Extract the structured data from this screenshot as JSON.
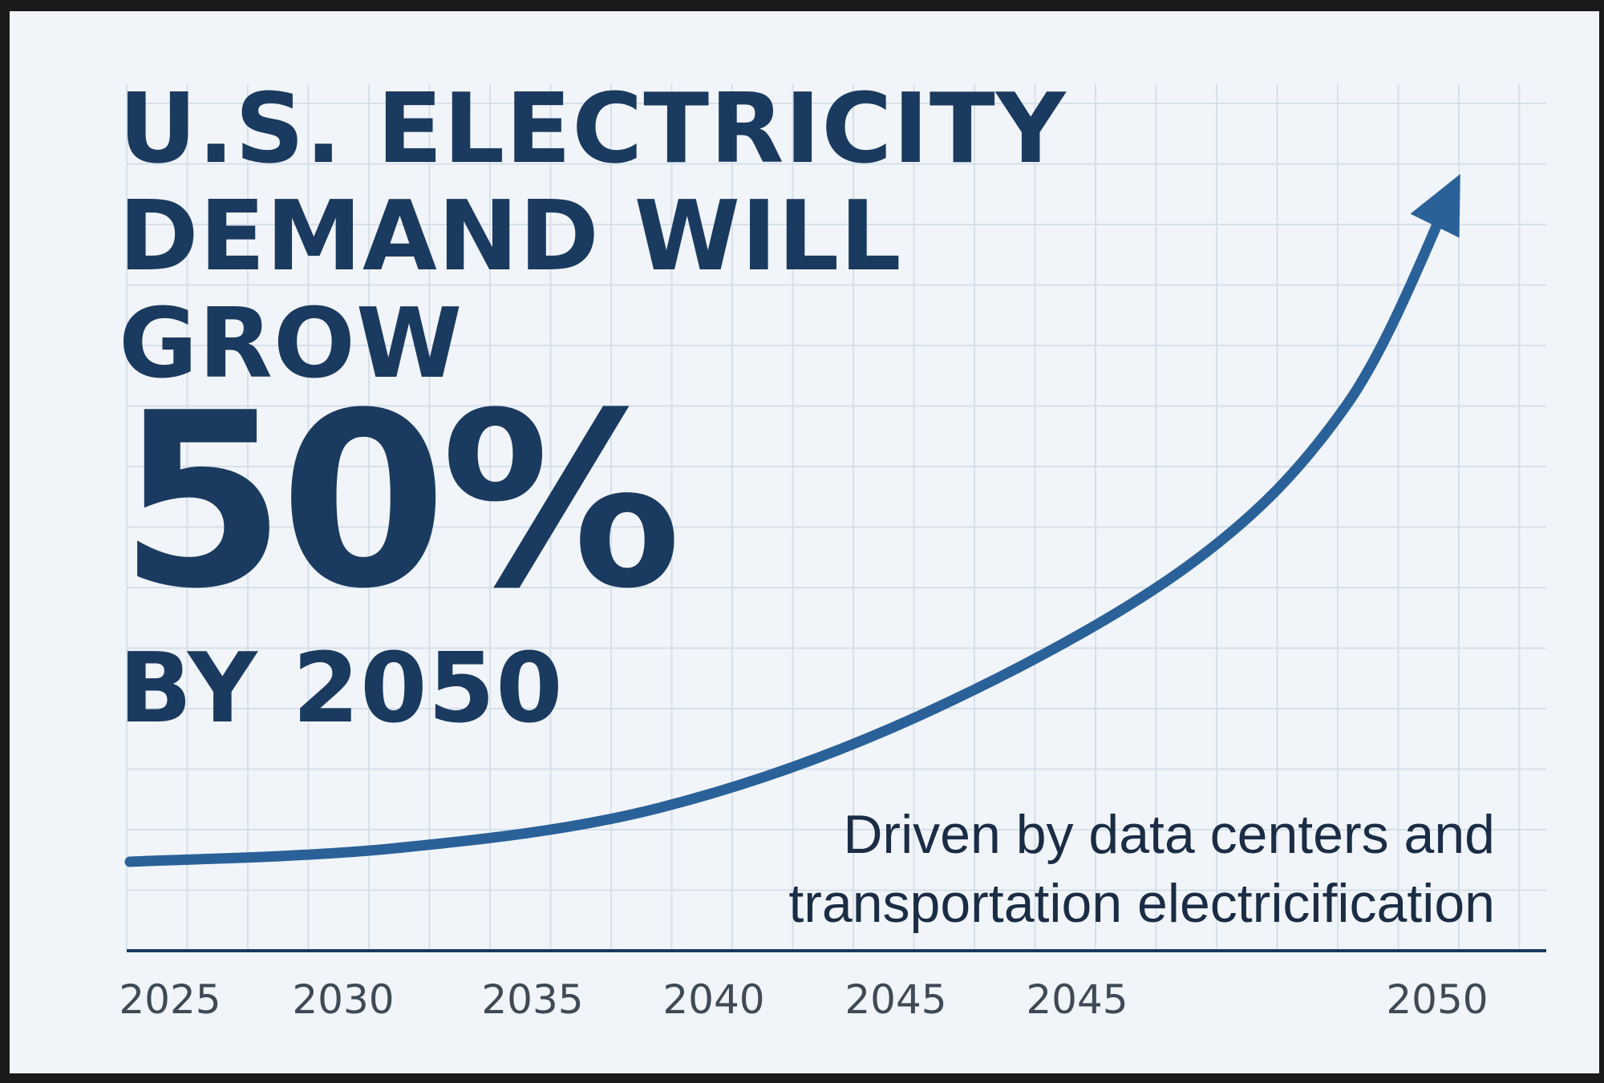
{
  "chart_data": {
    "type": "line",
    "title": "U.S. ELECTRICITY DEMAND WILL GROW 50% BY 2050",
    "headline": {
      "line1": "U.S. ELECTRICITY",
      "line2": "DEMAND WILL",
      "line3": "GROW",
      "percent": "50%",
      "line4": "BY 2050"
    },
    "annotation": {
      "line1": "Driven by data centers and",
      "line2": "transportation electricification"
    },
    "x_tick_labels": [
      "2025",
      "2030",
      "2035",
      "2040",
      "2045",
      "2045",
      "2050"
    ],
    "xlabel": "",
    "ylabel": "",
    "grid": true,
    "colors": {
      "line": "#2a6199",
      "text": "#1b3a5f",
      "axis": "#1b3a5f",
      "grid": "#d6e0ea",
      "background": "#f1f5f9"
    },
    "series": [
      {
        "values": [
          [
            2025,
            0
          ],
          [
            2030,
            1
          ],
          [
            2035,
            4
          ],
          [
            2040,
            11
          ],
          [
            2045,
            22
          ],
          [
            2048,
            34
          ],
          [
            2050,
            50
          ]
        ]
      }
    ],
    "xlim": [
      2025,
      2050
    ],
    "ylim": [
      0,
      50
    ],
    "arrow_end": true
  }
}
